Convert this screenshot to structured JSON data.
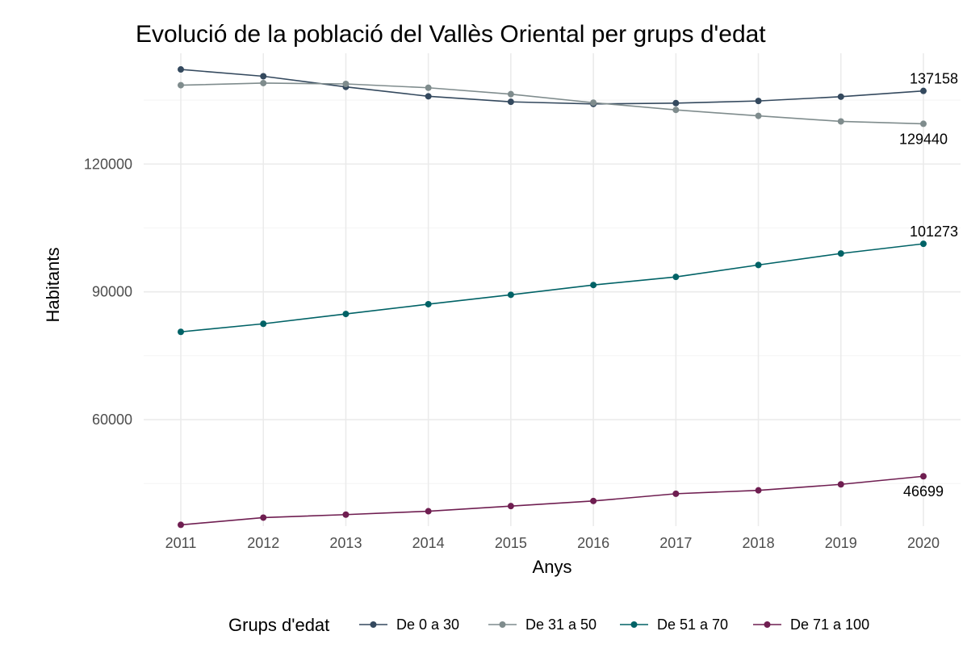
{
  "chart_data": {
    "type": "line",
    "title": "Evolució de la població del Vallès Oriental per grups d'edat",
    "xlabel": "Anys",
    "ylabel": "Habitants",
    "x": [
      2011,
      2012,
      2013,
      2014,
      2015,
      2016,
      2017,
      2018,
      2019,
      2020
    ],
    "x_ticks": [
      "2011",
      "2012",
      "2013",
      "2014",
      "2015",
      "2016",
      "2017",
      "2018",
      "2019",
      "2020"
    ],
    "y_ticks": [
      "60000",
      "90000",
      "120000"
    ],
    "ylim": [
      35000,
      146000
    ],
    "grid": true,
    "legend": {
      "title": "Grups d'edat",
      "position": "bottom"
    },
    "series": [
      {
        "name": "De 0 a 30",
        "color": "#34495e",
        "values": [
          142200,
          140600,
          138100,
          135900,
          134600,
          134100,
          134300,
          134800,
          135800,
          137158
        ]
      },
      {
        "name": "De 31 a 50",
        "color": "#7f8c8d",
        "values": [
          138500,
          139000,
          138800,
          137900,
          136400,
          134400,
          132700,
          131300,
          130000,
          129440
        ]
      },
      {
        "name": "De 51 a 70",
        "color": "#006266",
        "values": [
          80600,
          82500,
          84800,
          87100,
          89300,
          91600,
          93500,
          96300,
          99000,
          101273
        ]
      },
      {
        "name": "De 71 a 100",
        "color": "#6f1e51",
        "values": [
          35300,
          37000,
          37700,
          38500,
          39700,
          40900,
          42600,
          43400,
          44800,
          46699
        ]
      }
    ],
    "annotations": [
      {
        "series": "De 0 a 30",
        "x": 2020,
        "y": 137158,
        "text": "137158",
        "placement": "above"
      },
      {
        "series": "De 31 a 50",
        "x": 2020,
        "y": 129440,
        "text": "129440",
        "placement": "below"
      },
      {
        "series": "De 51 a 70",
        "x": 2020,
        "y": 101273,
        "text": "101273",
        "placement": "above"
      },
      {
        "series": "De 71 a 100",
        "x": 2020,
        "y": 46699,
        "text": "46699",
        "placement": "below"
      }
    ]
  }
}
